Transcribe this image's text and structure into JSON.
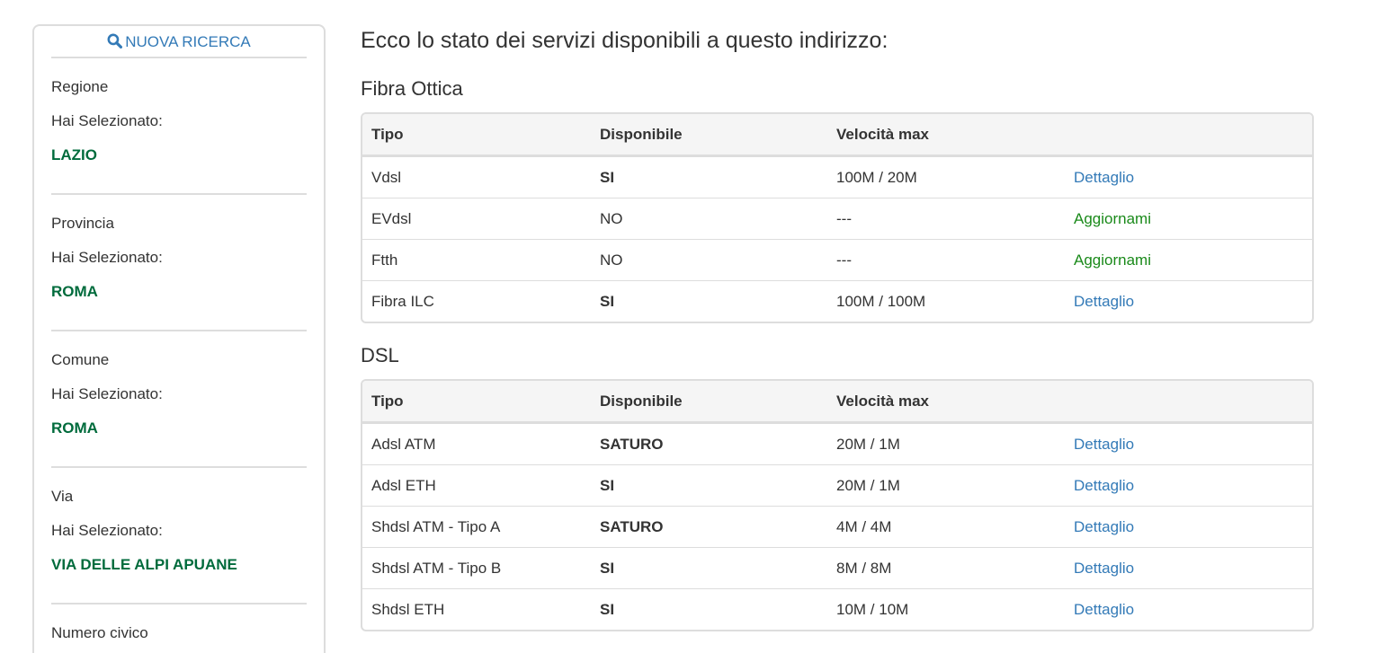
{
  "sidebar": {
    "new_search": "NUOVA RICERCA",
    "selected_label": "Hai Selezionato:",
    "groups": [
      {
        "label": "Regione",
        "value": "LAZIO"
      },
      {
        "label": "Provincia",
        "value": "ROMA"
      },
      {
        "label": "Comune",
        "value": "ROMA"
      },
      {
        "label": "Via",
        "value": "VIA DELLE ALPI APUANE"
      }
    ],
    "next_label": "Numero civico"
  },
  "main": {
    "title": "Ecco lo stato dei servizi disponibili a questo indirizzo:",
    "headers": [
      "Tipo",
      "Disponibile",
      "Velocità max"
    ],
    "sections": [
      {
        "title": "Fibra Ottica",
        "rows": [
          {
            "tipo": "Vdsl",
            "disp": "SI",
            "vel": "100M / 20M",
            "link": "Dettaglio",
            "type": "detail"
          },
          {
            "tipo": "EVdsl",
            "disp": "NO",
            "vel": "---",
            "link": "Aggiornami",
            "type": "upgrade"
          },
          {
            "tipo": "Ftth",
            "disp": "NO",
            "vel": "---",
            "link": "Aggiornami",
            "type": "upgrade"
          },
          {
            "tipo": "Fibra ILC",
            "disp": "SI",
            "vel": "100M / 100M",
            "link": "Dettaglio",
            "type": "detail"
          }
        ]
      },
      {
        "title": "DSL",
        "rows": [
          {
            "tipo": "Adsl ATM",
            "disp": "SATURO",
            "vel": "20M / 1M",
            "link": "Dettaglio",
            "type": "detail"
          },
          {
            "tipo": "Adsl ETH",
            "disp": "SI",
            "vel": "20M / 1M",
            "link": "Dettaglio",
            "type": "detail"
          },
          {
            "tipo": "Shdsl ATM - Tipo A",
            "disp": "SATURO",
            "vel": "4M / 4M",
            "link": "Dettaglio",
            "type": "detail"
          },
          {
            "tipo": "Shdsl ATM - Tipo B",
            "disp": "SI",
            "vel": "8M / 8M",
            "link": "Dettaglio",
            "type": "detail"
          },
          {
            "tipo": "Shdsl ETH",
            "disp": "SI",
            "vel": "10M / 10M",
            "link": "Dettaglio",
            "type": "detail"
          }
        ]
      }
    ]
  },
  "colors": {
    "link": "#337ab7",
    "selected": "#006b3c",
    "upgrade": "#1a8a1a"
  }
}
